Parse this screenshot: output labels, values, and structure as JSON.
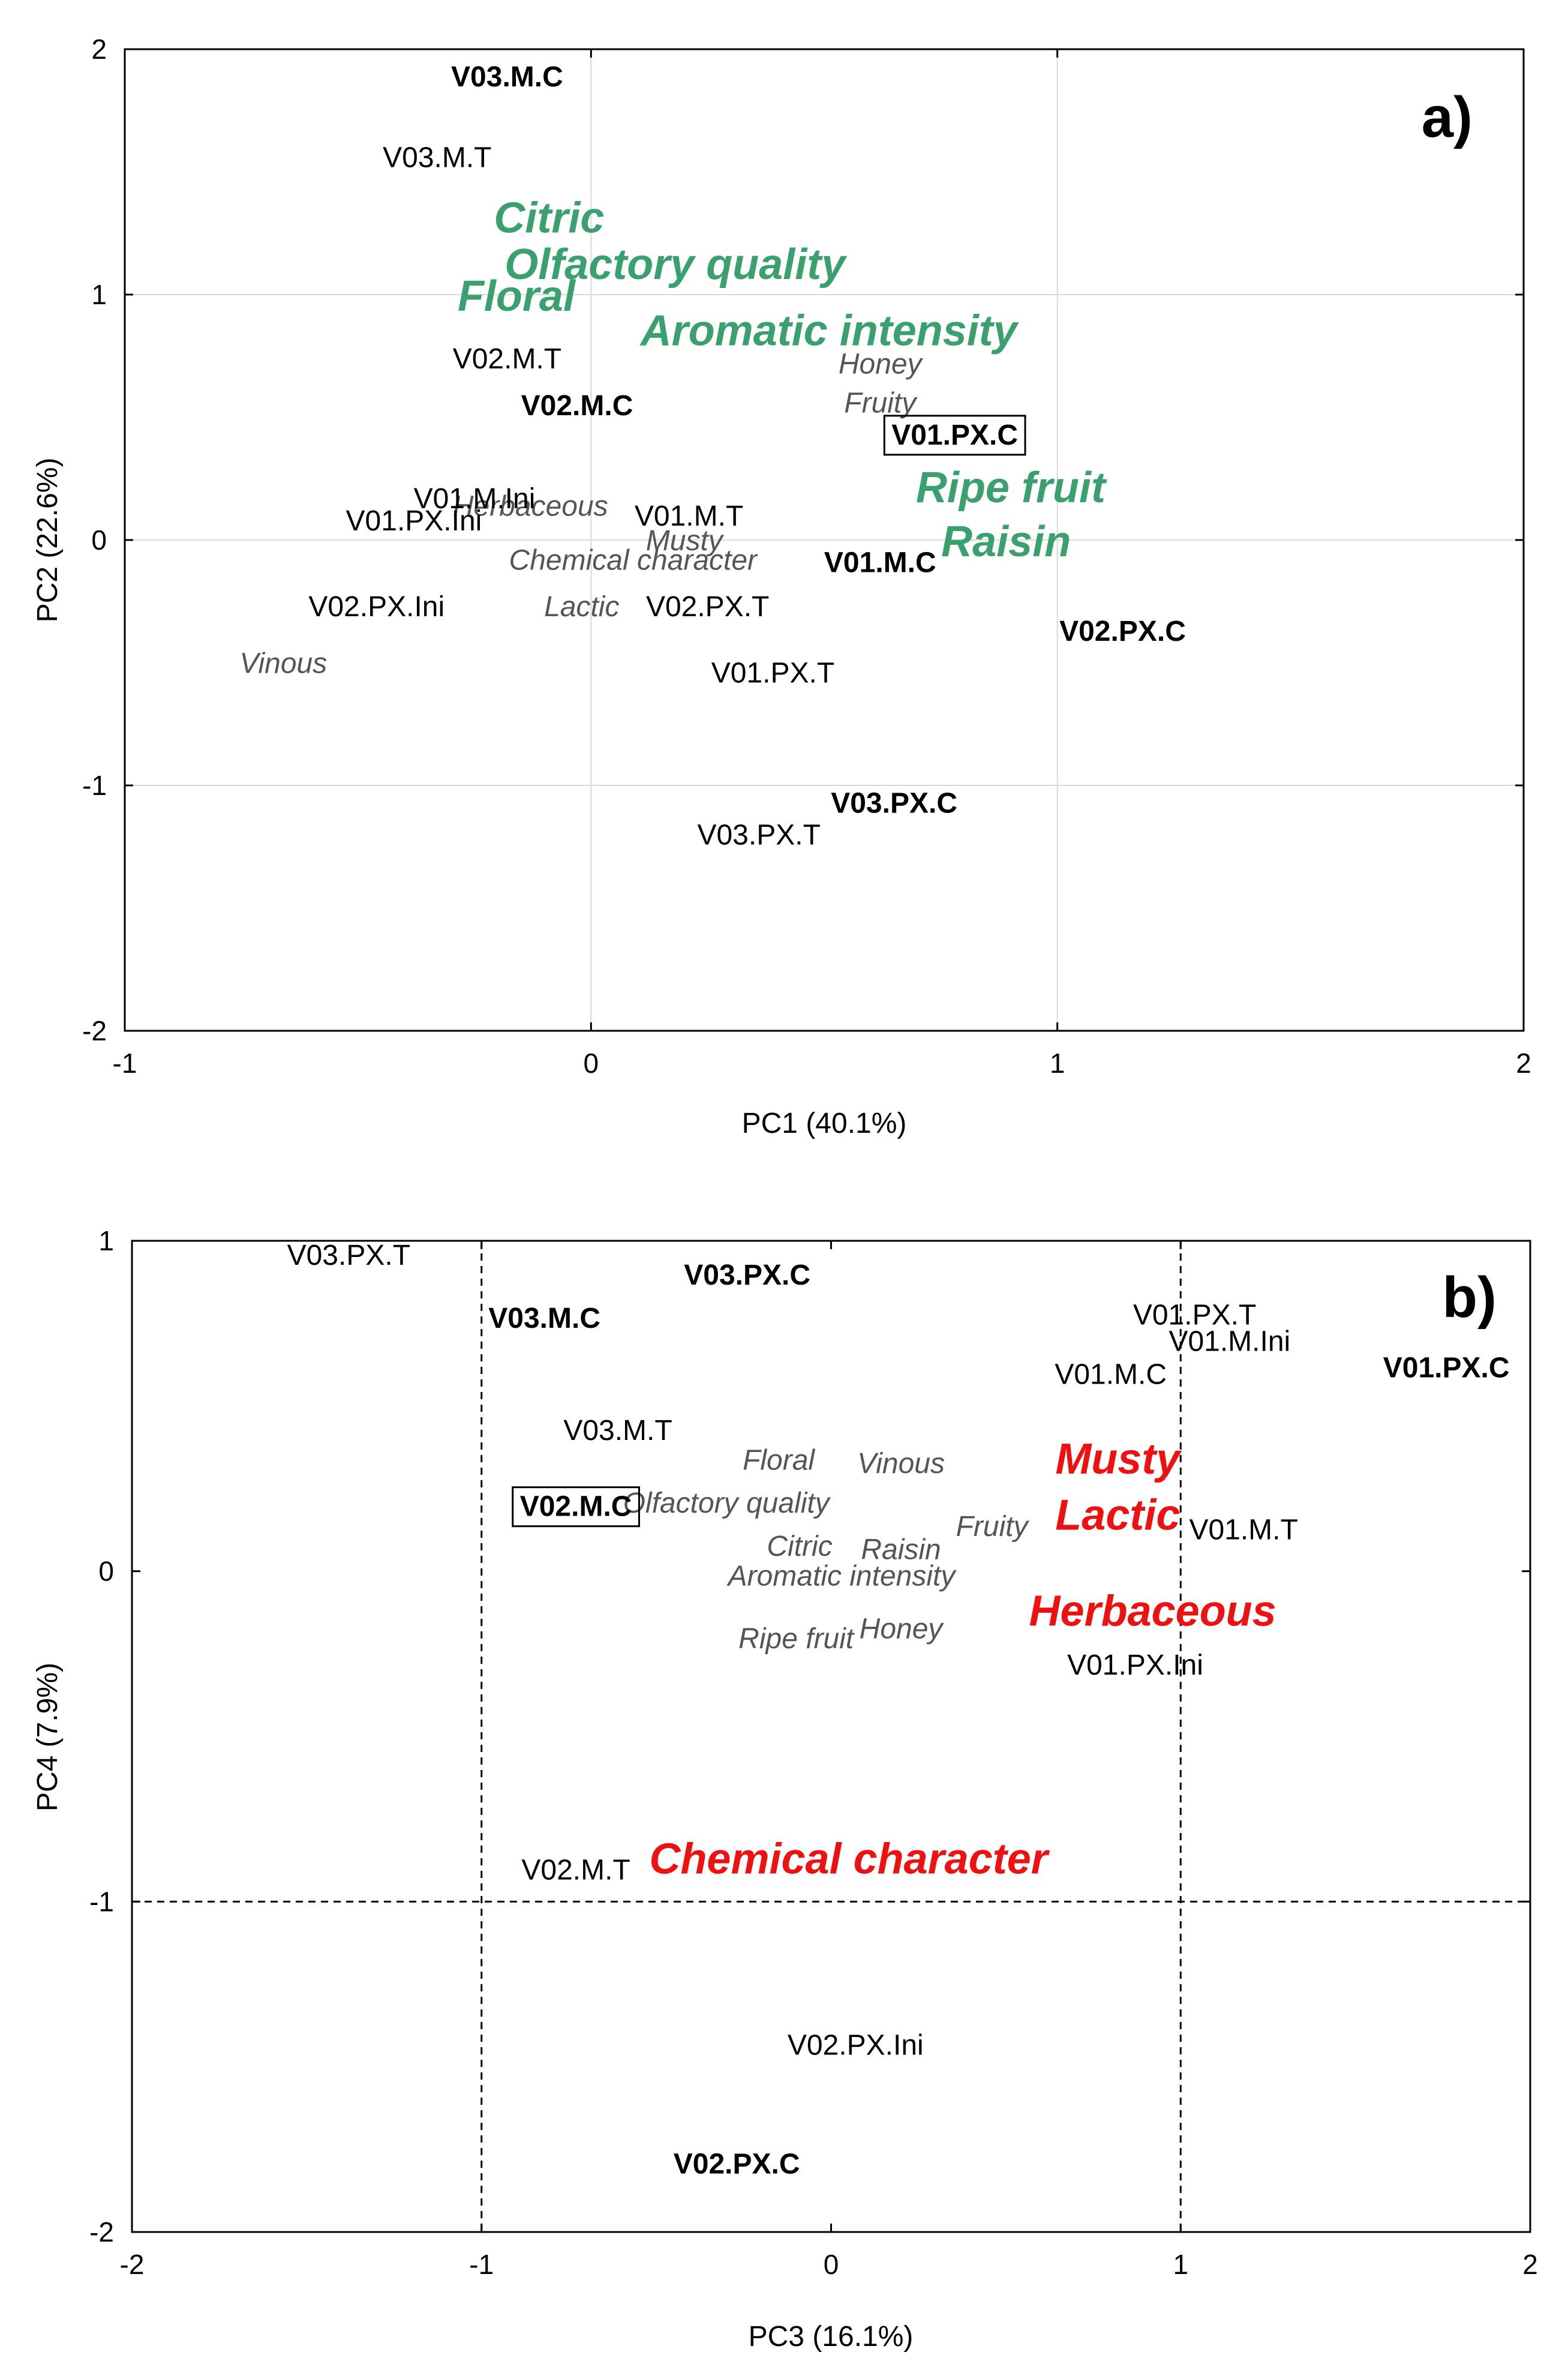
{
  "chart_data": [
    {
      "type": "scatter",
      "panel_label": "a)",
      "xlabel": "PC1 (40.1%)",
      "ylabel": "PC2 (22.6%)",
      "xlim": [
        -1,
        2
      ],
      "ylim": [
        -2,
        2
      ],
      "x_ticks": [
        -1,
        0,
        1,
        2
      ],
      "y_ticks": [
        -2,
        -1,
        0,
        1,
        2
      ],
      "x_tick_labels": [
        "-1",
        "0",
        "1",
        "2"
      ],
      "y_tick_labels": [
        "-2",
        "-1",
        "0",
        "1",
        "2"
      ],
      "grid": true,
      "colors": {
        "axis": "#000000",
        "grid": "#d9d9d9",
        "sample": "#000000",
        "attribute": "#555555",
        "highlight": "#3aa06e"
      },
      "boxed_label": "V01.PX.C",
      "samples": [
        {
          "label": "V03.M.C",
          "x": -0.18,
          "y": 1.88,
          "bold": true
        },
        {
          "label": "V03.M.T",
          "x": -0.33,
          "y": 1.55,
          "bold": false
        },
        {
          "label": "V02.M.T",
          "x": -0.18,
          "y": 0.73,
          "bold": false
        },
        {
          "label": "V02.M.C",
          "x": -0.03,
          "y": 0.54,
          "bold": true
        },
        {
          "label": "V01.M.Ini",
          "x": -0.25,
          "y": 0.16,
          "bold": false
        },
        {
          "label": "V01.PX.Ini",
          "x": -0.38,
          "y": 0.07,
          "bold": false
        },
        {
          "label": "V01.M.T",
          "x": 0.21,
          "y": 0.09,
          "bold": false
        },
        {
          "label": "V02.PX.Ini",
          "x": -0.46,
          "y": -0.28,
          "bold": false
        },
        {
          "label": "V02.PX.T",
          "x": 0.25,
          "y": -0.28,
          "bold": false
        },
        {
          "label": "V01.PX.T",
          "x": 0.39,
          "y": -0.55,
          "bold": false
        },
        {
          "label": "V01.M.C",
          "x": 0.62,
          "y": -0.1,
          "bold": true
        },
        {
          "label": "V02.PX.C",
          "x": 1.14,
          "y": -0.38,
          "bold": true
        },
        {
          "label": "V01.PX.C",
          "x": 0.78,
          "y": 0.42,
          "bold": true
        },
        {
          "label": "V03.PX.C",
          "x": 0.65,
          "y": -1.08,
          "bold": true
        },
        {
          "label": "V03.PX.T",
          "x": 0.36,
          "y": -1.21,
          "bold": false
        }
      ],
      "attributes": [
        {
          "label": "Honey",
          "x": 0.62,
          "y": 0.71,
          "highlight": false
        },
        {
          "label": "Fruity",
          "x": 0.62,
          "y": 0.55,
          "highlight": false
        },
        {
          "label": "Herbaceous",
          "x": -0.13,
          "y": 0.13,
          "highlight": false
        },
        {
          "label": "Musty",
          "x": 0.2,
          "y": -0.01,
          "highlight": false
        },
        {
          "label": "Chemical character",
          "x": 0.09,
          "y": -0.09,
          "highlight": false
        },
        {
          "label": "Lactic",
          "x": -0.02,
          "y": -0.28,
          "highlight": false
        },
        {
          "label": "Vinous",
          "x": -0.66,
          "y": -0.51,
          "highlight": false
        },
        {
          "label": "Citric",
          "x": -0.09,
          "y": 1.3,
          "highlight": true
        },
        {
          "label": "Olfactory quality",
          "x": 0.18,
          "y": 1.11,
          "highlight": true
        },
        {
          "label": "Floral",
          "x": -0.16,
          "y": 0.98,
          "highlight": true
        },
        {
          "label": "Aromatic intensity",
          "x": 0.51,
          "y": 0.84,
          "highlight": true
        },
        {
          "label": "Ripe fruit",
          "x": 0.9,
          "y": 0.2,
          "highlight": true
        },
        {
          "label": "Raisin",
          "x": 0.89,
          "y": -0.02,
          "highlight": true
        }
      ]
    },
    {
      "type": "scatter",
      "panel_label": "b)",
      "xlabel": "PC3 (16.1%)",
      "ylabel": "PC4 (7.9%)",
      "xlim": [
        -2,
        2
      ],
      "ylim": [
        -2,
        1
      ],
      "x_ticks": [
        -2,
        -1,
        0,
        1,
        2
      ],
      "y_ticks": [
        -2,
        -1,
        0,
        1
      ],
      "x_tick_labels": [
        "-2",
        "-1",
        "0",
        "1",
        "2"
      ],
      "y_tick_labels": [
        "-2",
        "-1",
        "0",
        "1"
      ],
      "grid": true,
      "colors": {
        "axis": "#000000",
        "grid": "#000000",
        "sample": "#000000",
        "attribute": "#555555",
        "highlight": "#ee1111"
      },
      "boxed_label": "V02.M.C",
      "samples": [
        {
          "label": "V03.PX.T",
          "x": -1.38,
          "y": 0.95,
          "bold": false
        },
        {
          "label": "V03.PX.C",
          "x": -0.24,
          "y": 0.89,
          "bold": true
        },
        {
          "label": "V03.M.C",
          "x": -0.82,
          "y": 0.76,
          "bold": true
        },
        {
          "label": "V01.PX.T",
          "x": 1.04,
          "y": 0.77,
          "bold": false
        },
        {
          "label": "V01.M.Ini",
          "x": 1.14,
          "y": 0.69,
          "bold": false
        },
        {
          "label": "V01.M.C",
          "x": 0.8,
          "y": 0.59,
          "bold": false
        },
        {
          "label": "V01.PX.C",
          "x": 1.76,
          "y": 0.61,
          "bold": true
        },
        {
          "label": "V03.M.T",
          "x": -0.61,
          "y": 0.42,
          "bold": false
        },
        {
          "label": "V02.M.C",
          "x": -0.73,
          "y": 0.19,
          "bold": true
        },
        {
          "label": "V01.M.T",
          "x": 1.18,
          "y": 0.12,
          "bold": false
        },
        {
          "label": "V01.PX.Ini",
          "x": 0.87,
          "y": -0.29,
          "bold": false
        },
        {
          "label": "V02.M.T",
          "x": -0.73,
          "y": -0.91,
          "bold": false
        },
        {
          "label": "V02.PX.Ini",
          "x": 0.07,
          "y": -1.44,
          "bold": false
        },
        {
          "label": "V02.PX.C",
          "x": -0.27,
          "y": -1.8,
          "bold": true
        }
      ],
      "attributes": [
        {
          "label": "Floral",
          "x": -0.15,
          "y": 0.33,
          "highlight": false
        },
        {
          "label": "Vinous",
          "x": 0.2,
          "y": 0.32,
          "highlight": false
        },
        {
          "label": "Olfactory quality",
          "x": -0.3,
          "y": 0.2,
          "highlight": false
        },
        {
          "label": "Fruity",
          "x": 0.46,
          "y": 0.13,
          "highlight": false
        },
        {
          "label": "Citric",
          "x": -0.09,
          "y": 0.07,
          "highlight": false
        },
        {
          "label": "Raisin",
          "x": 0.2,
          "y": 0.06,
          "highlight": false
        },
        {
          "label": "Aromatic intensity",
          "x": 0.03,
          "y": -0.02,
          "highlight": false
        },
        {
          "label": "Ripe fruit",
          "x": -0.1,
          "y": -0.21,
          "highlight": false
        },
        {
          "label": "Honey",
          "x": 0.2,
          "y": -0.18,
          "highlight": false
        },
        {
          "label": "Musty",
          "x": 0.82,
          "y": 0.33,
          "highlight": true
        },
        {
          "label": "Lactic",
          "x": 0.82,
          "y": 0.16,
          "highlight": true
        },
        {
          "label": "Herbaceous",
          "x": 0.92,
          "y": -0.13,
          "highlight": true
        },
        {
          "label": "Chemical character",
          "x": 0.05,
          "y": -0.88,
          "highlight": true
        }
      ]
    }
  ]
}
